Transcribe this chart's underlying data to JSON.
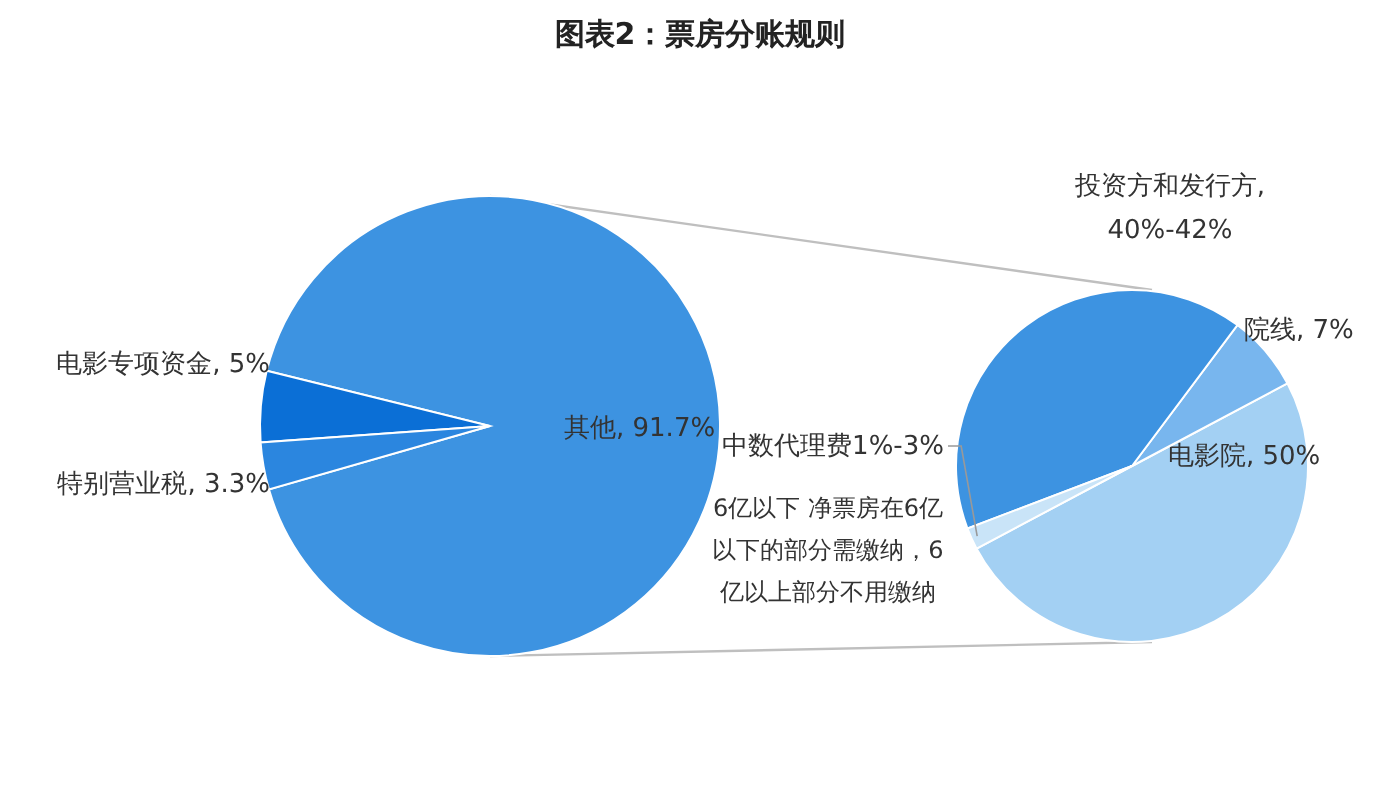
{
  "chart_data": [
    {
      "type": "pie",
      "title": "图表2：票房分账规则",
      "categories": [
        "其他, 91.7%",
        "电影专项资金, 5%",
        "特别营业税, 3.3%"
      ],
      "values": [
        91.7,
        5,
        3.3
      ],
      "colors": [
        "#3d93e1",
        "#0b6fd6",
        "#2b86df"
      ]
    },
    {
      "type": "pie",
      "categories": [
        "电影院, 50%",
        "院线, 7%",
        "投资方和发行方, 40%-42%",
        "中数代理费1%-3%"
      ],
      "values": [
        50,
        7,
        41,
        2
      ],
      "colors": [
        "#a3d0f3",
        "#78b6ee",
        "#3d93e1",
        "#c9e4f8"
      ],
      "annotations": [
        "6亿以下 净票房在6亿以下的部分需缴纳，6亿以上部分不用缴纳"
      ]
    }
  ]
}
